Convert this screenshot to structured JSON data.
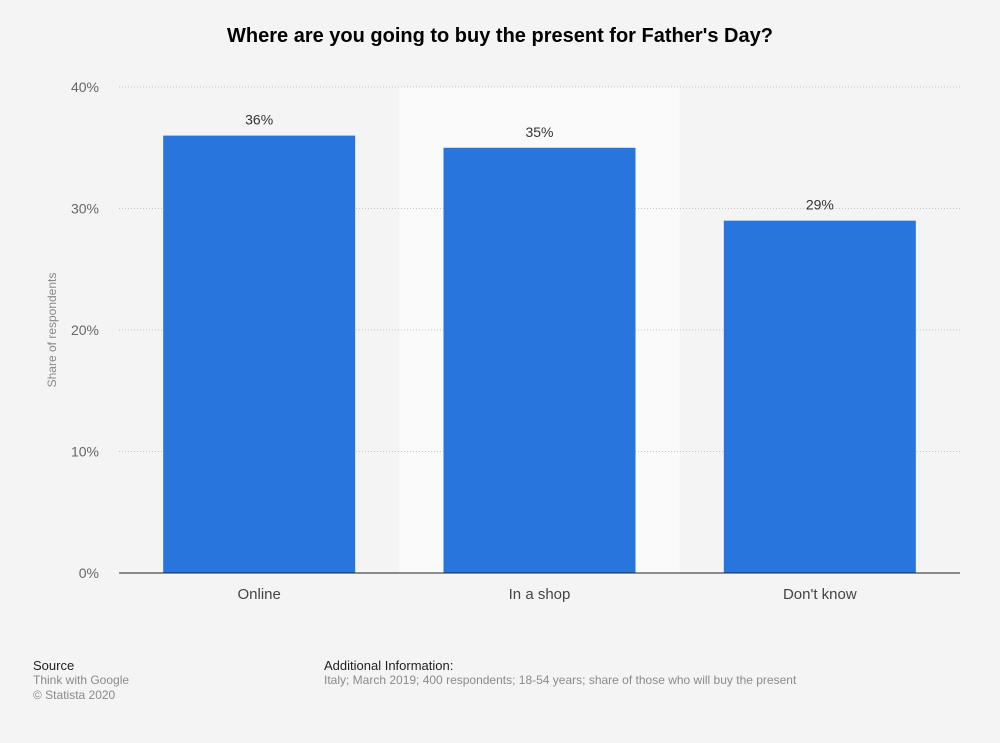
{
  "chart_data": {
    "type": "bar",
    "title": "Where are you going to buy the present for Father's Day?",
    "xlabel": "",
    "ylabel": "Share of respondents",
    "categories": [
      "Online",
      "In a shop",
      "Don't know"
    ],
    "values": [
      36,
      35,
      29
    ],
    "value_labels": [
      "36%",
      "35%",
      "29%"
    ],
    "y_ticks": [
      0,
      10,
      20,
      30,
      40
    ],
    "y_tick_labels": [
      "0%",
      "10%",
      "20%",
      "30%",
      "40%"
    ],
    "ylim": [
      0,
      40
    ],
    "grid": true,
    "bar_color": "#2876dd",
    "highlight_band_color": "#fafafa",
    "highlighted_category": "In a shop"
  },
  "footer": {
    "source_heading": "Source",
    "source_lines": [
      "Think with Google",
      "© Statista 2020"
    ],
    "info_heading": "Additional Information:",
    "info_text": "Italy; March 2019; 400 respondents; 18-54 years; share of those who will buy the present"
  }
}
